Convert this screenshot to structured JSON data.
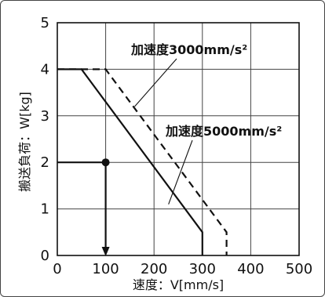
{
  "chart_data": {
    "type": "line",
    "xlabel": "速度：V[mm/s]",
    "ylabel": "搬送負荷：W[kg]",
    "xlim": [
      0,
      500
    ],
    "ylim": [
      0,
      5
    ],
    "x_ticks": [
      "0",
      "100",
      "200",
      "300",
      "400",
      "500"
    ],
    "y_ticks": [
      "0",
      "1",
      "2",
      "3",
      "4",
      "5"
    ],
    "grid": true,
    "series": [
      {
        "name": "加速度5000mm/s²",
        "style": "solid",
        "points": [
          [
            0,
            4
          ],
          [
            50,
            4
          ],
          [
            300,
            0.5
          ],
          [
            300,
            0
          ]
        ]
      },
      {
        "name": "加速度3000mm/s²",
        "style": "dashed",
        "points": [
          [
            0,
            4
          ],
          [
            100,
            4
          ],
          [
            350,
            0.5
          ],
          [
            350,
            0
          ]
        ]
      }
    ],
    "annotations": [
      {
        "label": "加速度3000mm/s²",
        "points_to": [
          160,
          3.2
        ]
      },
      {
        "label": "加速度5000mm/s²",
        "points_to": [
          230,
          1.1
        ]
      }
    ],
    "example_point": {
      "x": 100,
      "y": 2
    },
    "colors": {
      "line": "#111111",
      "grid": "#444444",
      "frame": "#444444"
    }
  }
}
